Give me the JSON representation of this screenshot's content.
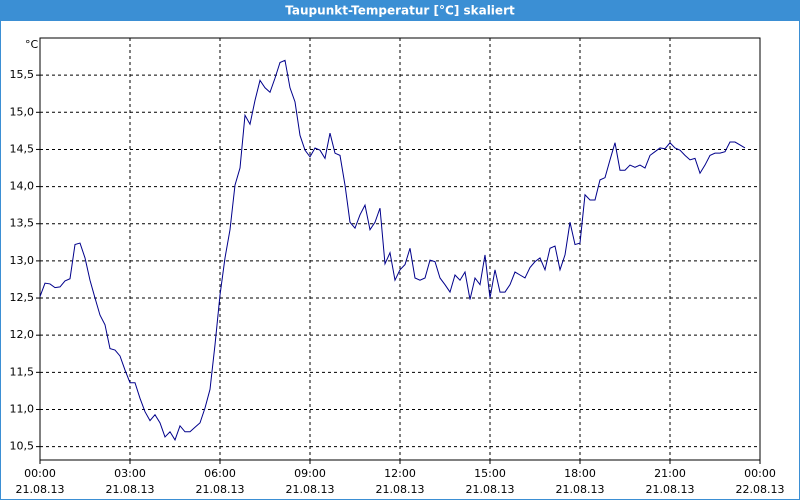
{
  "window_title": "Taupunkt-Temperatur [°C] skaliert",
  "chart_data": {
    "type": "line",
    "y_unit_label": "°C",
    "x": [
      0,
      10,
      20,
      30,
      40,
      50,
      60,
      70,
      80,
      90,
      100,
      110,
      120,
      130,
      140,
      150,
      160,
      170,
      180,
      190,
      200,
      210,
      220,
      230,
      240,
      250,
      260,
      270,
      280,
      290,
      300,
      310,
      320,
      330,
      340,
      350,
      360,
      370,
      380,
      390,
      400,
      410,
      420,
      430,
      440,
      450,
      460,
      470,
      480,
      490,
      500,
      510,
      520,
      530,
      540,
      550,
      560,
      570,
      580,
      590,
      600,
      610,
      620,
      630,
      640,
      650,
      660,
      670,
      680,
      690,
      700,
      710,
      720,
      730,
      740,
      750,
      760,
      770,
      780,
      790,
      800,
      810,
      820,
      830,
      840,
      850,
      860,
      870,
      880,
      890,
      900,
      910,
      920,
      930,
      940,
      950,
      960,
      970,
      980,
      990,
      1000,
      1010,
      1020,
      1030,
      1040,
      1050,
      1060,
      1070,
      1080,
      1090,
      1100,
      1110,
      1120,
      1130,
      1140,
      1150,
      1160,
      1170,
      1180,
      1190,
      1200,
      1210,
      1220,
      1230,
      1240,
      1250,
      1260,
      1270,
      1280,
      1290,
      1300,
      1310,
      1320,
      1330,
      1340,
      1350,
      1360,
      1370,
      1380,
      1390,
      1400,
      1410
    ],
    "series": [
      {
        "color": "#00008b",
        "values": [
          12.52,
          12.7,
          12.69,
          12.64,
          12.65,
          12.73,
          12.76,
          13.22,
          13.24,
          13.04,
          12.74,
          12.5,
          12.27,
          12.14,
          11.82,
          11.8,
          11.72,
          11.53,
          11.36,
          11.36,
          11.15,
          10.97,
          10.85,
          10.93,
          10.82,
          10.63,
          10.7,
          10.59,
          10.78,
          10.7,
          10.7,
          10.76,
          10.82,
          11.02,
          11.27,
          11.87,
          12.54,
          13.04,
          13.42,
          14.02,
          14.25,
          14.96,
          14.84,
          15.16,
          15.43,
          15.33,
          15.27,
          15.46,
          15.67,
          15.7,
          15.33,
          15.14,
          14.69,
          14.49,
          14.4,
          14.52,
          14.49,
          14.38,
          14.72,
          14.45,
          14.42,
          14.02,
          13.52,
          13.44,
          13.62,
          13.75,
          13.42,
          13.52,
          13.71,
          12.96,
          13.11,
          12.74,
          12.88,
          12.95,
          13.17,
          12.77,
          12.74,
          12.77,
          13.01,
          12.99,
          12.77,
          12.68,
          12.58,
          12.81,
          12.74,
          12.85,
          12.48,
          12.77,
          12.68,
          13.08,
          12.5,
          12.88,
          12.58,
          12.58,
          12.68,
          12.85,
          12.81,
          12.77,
          12.91,
          12.99,
          13.04,
          12.88,
          13.17,
          13.2,
          12.88,
          13.08,
          13.52,
          13.22,
          13.24,
          13.89,
          13.82,
          13.82,
          14.09,
          14.12,
          14.36,
          14.59,
          14.22,
          14.22,
          14.29,
          14.26,
          14.29,
          14.25,
          14.42,
          14.47,
          14.52,
          14.51,
          14.59,
          14.52,
          14.49,
          14.42,
          14.36,
          14.38,
          14.18,
          14.29,
          14.42,
          14.45,
          14.45,
          14.47,
          14.6,
          14.6,
          14.56,
          14.52
        ]
      }
    ],
    "xlim": [
      0,
      1440
    ],
    "xticks": [
      {
        "value": 0,
        "label": "00:00"
      },
      {
        "value": 180,
        "label": "03:00"
      },
      {
        "value": 360,
        "label": "06:00"
      },
      {
        "value": 540,
        "label": "09:00"
      },
      {
        "value": 720,
        "label": "12:00"
      },
      {
        "value": 900,
        "label": "15:00"
      },
      {
        "value": 1080,
        "label": "18:00"
      },
      {
        "value": 1260,
        "label": "21:00"
      },
      {
        "value": 1440,
        "label": "00:00"
      }
    ],
    "xtick_dates": [
      "21.08.13",
      "21.08.13",
      "21.08.13",
      "21.08.13",
      "21.08.13",
      "21.08.13",
      "21.08.13",
      "21.08.13",
      "22.08.13"
    ],
    "ylim": [
      10.32,
      16.0
    ],
    "yticks": [
      {
        "value": 10.5,
        "label": "10,5"
      },
      {
        "value": 11.0,
        "label": "11,0"
      },
      {
        "value": 11.5,
        "label": "11,5"
      },
      {
        "value": 12.0,
        "label": "12,0"
      },
      {
        "value": 12.5,
        "label": "12,5"
      },
      {
        "value": 13.0,
        "label": "13,0"
      },
      {
        "value": 13.5,
        "label": "13,5"
      },
      {
        "value": 14.0,
        "label": "14,0"
      },
      {
        "value": 14.5,
        "label": "14,5"
      },
      {
        "value": 15.0,
        "label": "15,0"
      },
      {
        "value": 15.5,
        "label": "15,5"
      }
    ],
    "grid": true
  }
}
